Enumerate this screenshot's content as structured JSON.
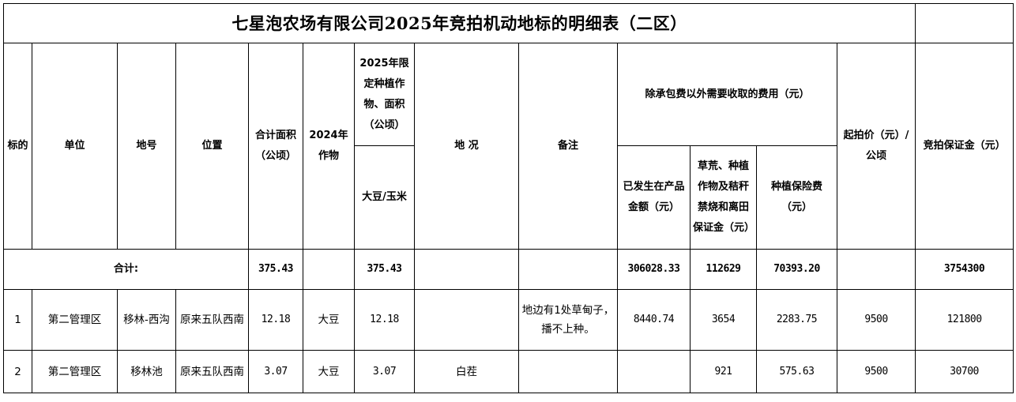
{
  "title": "七星泡农场有限公司2025年竞拍机动地标的明细表（二区）",
  "headers": {
    "lot": "标的",
    "unit": "单位",
    "plot_no": "地号",
    "location": "位置",
    "total_area": "合计面积（公顷）",
    "crop_2024": "2024年作物",
    "crop_2025": "2025年限定种植作物、面积（公顷）",
    "crop_2025_sub": "大豆/玉米",
    "condition": "地 况",
    "remarks": "备注",
    "fees_group": "除承包费以外需要收取的费用（元）",
    "fee_product": "已发生在产品金额（元）",
    "fee_deposit": "草荒、种植作物及秸秆禁烧和离田保证金（元）",
    "fee_insurance": "种植保险费（元）",
    "start_price": "起拍价（元）/公顷",
    "bid_deposit": "竞拍保证金（元）"
  },
  "total": {
    "label": "合计:",
    "total_area": "375.43",
    "crop_2025": "375.43",
    "fee_product": "306028.33",
    "fee_deposit": "112629",
    "fee_insurance": "70393.20",
    "bid_deposit": "3754300"
  },
  "rows": [
    {
      "lot": "1",
      "unit": "第二管理区",
      "plot_no": "移林-西沟",
      "location": "原来五队西南",
      "total_area": "12.18",
      "crop_2024": "大豆",
      "crop_2025": "12.18",
      "condition": "",
      "remarks": "地边有1处草甸子，播不上种。",
      "fee_product": "8440.74",
      "fee_deposit": "3654",
      "fee_insurance": "2283.75",
      "start_price": "9500",
      "bid_deposit": "121800"
    },
    {
      "lot": "2",
      "unit": "第二管理区",
      "plot_no": "移林池",
      "location": "原来五队西南",
      "total_area": "3.07",
      "crop_2024": "大豆",
      "crop_2025": "3.07",
      "condition": "白茬",
      "remarks": "",
      "fee_product": "",
      "fee_deposit": "921",
      "fee_insurance": "575.63",
      "start_price": "9500",
      "bid_deposit": "30700"
    }
  ]
}
